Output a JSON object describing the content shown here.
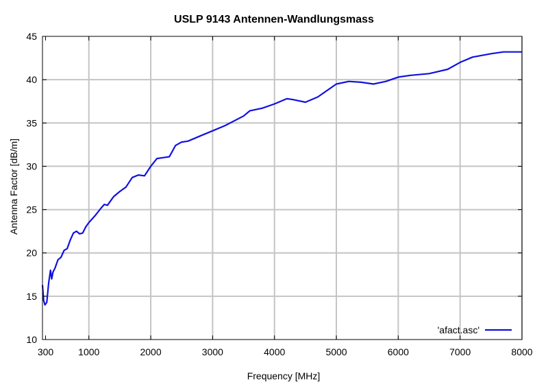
{
  "chart_data": {
    "type": "line",
    "title": "USLP 9143 Antennen-Wandlungsmass",
    "xlabel": "Frequency [MHz]",
    "ylabel": "Antenna Factor [dB/m]",
    "xlim": [
      250,
      8000
    ],
    "ylim": [
      10,
      45
    ],
    "x_ticks": [
      300,
      1000,
      2000,
      3000,
      4000,
      5000,
      6000,
      7000,
      8000
    ],
    "y_ticks": [
      10,
      15,
      20,
      25,
      30,
      35,
      40,
      45
    ],
    "grid": true,
    "legend_position": "bottom-right",
    "line_color": "#1010e0",
    "series": [
      {
        "name": "'afact.asc'",
        "x": [
          250,
          270,
          290,
          320,
          350,
          380,
          400,
          420,
          450,
          500,
          550,
          600,
          650,
          700,
          750,
          800,
          850,
          900,
          950,
          1000,
          1100,
          1200,
          1250,
          1300,
          1400,
          1500,
          1600,
          1700,
          1800,
          1900,
          2000,
          2100,
          2200,
          2300,
          2400,
          2500,
          2600,
          2800,
          3000,
          3200,
          3500,
          3600,
          3800,
          4000,
          4200,
          4300,
          4500,
          4700,
          5000,
          5200,
          5400,
          5600,
          5800,
          6000,
          6200,
          6500,
          6800,
          7000,
          7200,
          7500,
          7700,
          8000
        ],
        "y": [
          16.3,
          14.5,
          14.0,
          14.3,
          16.5,
          18.0,
          17.0,
          17.8,
          18.2,
          19.2,
          19.5,
          20.3,
          20.5,
          21.5,
          22.3,
          22.5,
          22.2,
          22.3,
          23.0,
          23.5,
          24.3,
          25.2,
          25.6,
          25.5,
          26.5,
          27.1,
          27.6,
          28.7,
          29.0,
          28.9,
          30.0,
          30.9,
          31.0,
          31.1,
          32.4,
          32.8,
          32.9,
          33.5,
          34.1,
          34.7,
          35.8,
          36.4,
          36.7,
          37.2,
          37.8,
          37.7,
          37.4,
          38.0,
          39.5,
          39.8,
          39.7,
          39.5,
          39.8,
          40.3,
          40.5,
          40.7,
          41.2,
          42.0,
          42.6,
          43.0,
          43.2,
          43.2
        ]
      }
    ]
  }
}
